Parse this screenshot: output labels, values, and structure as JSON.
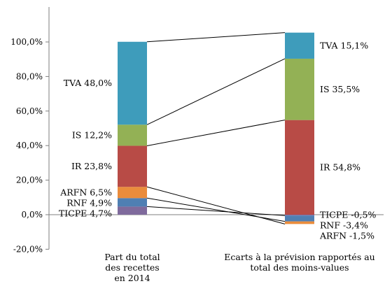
{
  "chart_data": {
    "type": "bar",
    "stacked": true,
    "title": "",
    "xlabel": "",
    "ylabel": "",
    "ylim": [
      -20,
      100
    ],
    "y_ticks": [
      "-20,0%",
      "0,0%",
      "20,0%",
      "40,0%",
      "60,0%",
      "80,0%",
      "100,0%"
    ],
    "grid": false,
    "legend": "none",
    "categories": [
      "Part du total des recettes en 2014",
      "Ecarts à la prévision rapportés au total des moins-values"
    ],
    "category_label_lines": [
      [
        "Part du total",
        "des recettes",
        "en 2014"
      ],
      [
        "Ecarts à la prévision rapportés au",
        "total des moins-values"
      ]
    ],
    "series": [
      {
        "name": "TICPE",
        "color": "#7f6a9c",
        "values": [
          4.7,
          -0.5
        ],
        "labels": [
          "TICPE 4,7%",
          "TICPE -0,5%"
        ]
      },
      {
        "name": "RNF",
        "color": "#4f7fb3",
        "values": [
          4.9,
          -3.4
        ],
        "labels": [
          "RNF 4,9%",
          "RNF -3,4%"
        ]
      },
      {
        "name": "ARFN",
        "color": "#ea8c3c",
        "values": [
          6.5,
          -1.5
        ],
        "labels": [
          "ARFN 6,5%",
          "ARFN -1,5%"
        ]
      },
      {
        "name": "IR",
        "color": "#b84b46",
        "values": [
          23.8,
          54.8
        ],
        "labels": [
          "IR 23,8%",
          "IR 54,8%"
        ]
      },
      {
        "name": "IS",
        "color": "#93b155",
        "values": [
          12.2,
          35.5
        ],
        "labels": [
          "IS 12,2%",
          "IS 35,5%"
        ]
      },
      {
        "name": "TVA",
        "color": "#3e9cbb",
        "values": [
          48.0,
          15.1
        ],
        "labels": [
          "TVA 48,0%",
          "TVA 15,1%"
        ]
      }
    ]
  }
}
